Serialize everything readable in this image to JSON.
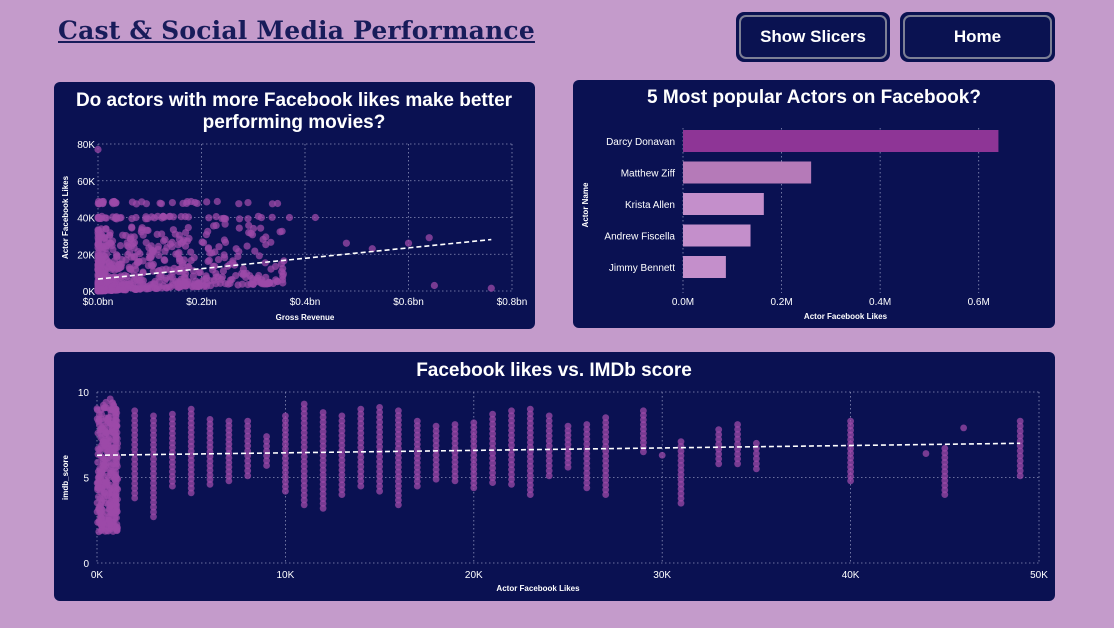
{
  "header": {
    "title": "Cast & Social Media Performance"
  },
  "nav": {
    "show_slicers_label": "Show Slicers",
    "home_label": "Home"
  },
  "colors": {
    "background": "#c49bcb",
    "card": "#0a1152",
    "accent_dark": "#8e3596",
    "accent_mid": "#b57ab8",
    "accent_light": "#c48fcb",
    "dot": "#9c4aa8"
  },
  "scatter_card": {
    "title_line1": "Do actors with more Facebook likes make better",
    "title_line2": "performing movies?"
  },
  "bar_card": {
    "title": "5 Most popular Actors on Facebook?"
  },
  "imdb_card": {
    "title": "Facebook likes vs. IMDb score"
  },
  "chart_data": [
    {
      "type": "scatter",
      "xlabel": "Gross Revenue",
      "ylabel": "Actor Facebook Likes",
      "x_ticks": [
        "$0.0bn",
        "$0.2bn",
        "$0.4bn",
        "$0.6bn",
        "$0.8bn"
      ],
      "y_ticks": [
        "0K",
        "20K",
        "40K",
        "60K",
        "80K"
      ],
      "xlim": [
        0,
        0.8
      ],
      "ylim": [
        0,
        80000
      ],
      "grid": true,
      "trendline": {
        "x": [
          0,
          0.76
        ],
        "y": [
          6500,
          28000
        ]
      },
      "outliers": [
        {
          "x": 0.0,
          "y": 77000
        },
        {
          "x": 0.76,
          "y": 1500
        },
        {
          "x": 0.65,
          "y": 3000
        },
        {
          "x": 0.64,
          "y": 29000
        },
        {
          "x": 0.6,
          "y": 26000
        },
        {
          "x": 0.53,
          "y": 23000
        },
        {
          "x": 0.48,
          "y": 26000
        },
        {
          "x": 0.42,
          "y": 40000
        },
        {
          "x": 0.37,
          "y": 40000
        }
      ]
    },
    {
      "type": "bar",
      "orientation": "horizontal",
      "categories": [
        "Darcy Donavan",
        "Matthew Ziff",
        "Krista Allen",
        "Andrew Fiscella",
        "Jimmy Bennett"
      ],
      "values": [
        640000,
        260000,
        164000,
        137000,
        87000
      ],
      "xlabel": "Actor Facebook Likes",
      "ylabel": "Actor Name",
      "x_ticks": [
        "0.0M",
        "0.2M",
        "0.4M",
        "0.6M"
      ],
      "xlim": [
        0,
        700000
      ],
      "grid": true
    },
    {
      "type": "scatter",
      "xlabel": "Actor Facebook Likes",
      "ylabel": "imdb_score",
      "x_ticks": [
        "0K",
        "10K",
        "20K",
        "30K",
        "40K",
        "50K"
      ],
      "y_ticks": [
        "0",
        "5",
        "10"
      ],
      "xlim": [
        0,
        50000
      ],
      "ylim": [
        0,
        10
      ],
      "grid": true,
      "trendline": {
        "x": [
          0,
          49000
        ],
        "y": [
          6.3,
          7.0
        ]
      },
      "columns": [
        {
          "x": 1000,
          "min": 3.4,
          "max": 8.9
        },
        {
          "x": 2000,
          "min": 3.8,
          "max": 8.9
        },
        {
          "x": 3000,
          "min": 2.7,
          "max": 8.6
        },
        {
          "x": 4000,
          "min": 4.5,
          "max": 8.7
        },
        {
          "x": 5000,
          "min": 4.1,
          "max": 9.0
        },
        {
          "x": 6000,
          "min": 4.6,
          "max": 8.4
        },
        {
          "x": 7000,
          "min": 4.8,
          "max": 8.3
        },
        {
          "x": 8000,
          "min": 5.1,
          "max": 8.3
        },
        {
          "x": 9000,
          "min": 5.7,
          "max": 7.4
        },
        {
          "x": 10000,
          "min": 4.2,
          "max": 8.6
        },
        {
          "x": 11000,
          "min": 3.4,
          "max": 9.3
        },
        {
          "x": 12000,
          "min": 3.2,
          "max": 8.8
        },
        {
          "x": 13000,
          "min": 4.0,
          "max": 8.6
        },
        {
          "x": 14000,
          "min": 4.5,
          "max": 9.0
        },
        {
          "x": 15000,
          "min": 4.2,
          "max": 9.1
        },
        {
          "x": 16000,
          "min": 3.4,
          "max": 8.9
        },
        {
          "x": 17000,
          "min": 4.5,
          "max": 8.3
        },
        {
          "x": 18000,
          "min": 4.9,
          "max": 8.0
        },
        {
          "x": 19000,
          "min": 4.8,
          "max": 8.1
        },
        {
          "x": 20000,
          "min": 4.4,
          "max": 8.2
        },
        {
          "x": 21000,
          "min": 4.7,
          "max": 8.7
        },
        {
          "x": 22000,
          "min": 4.6,
          "max": 8.9
        },
        {
          "x": 23000,
          "min": 4.0,
          "max": 9.0
        },
        {
          "x": 24000,
          "min": 5.1,
          "max": 8.6
        },
        {
          "x": 25000,
          "min": 5.6,
          "max": 8.0
        },
        {
          "x": 26000,
          "min": 4.4,
          "max": 8.1
        },
        {
          "x": 27000,
          "min": 4.0,
          "max": 8.5
        },
        {
          "x": 29000,
          "min": 6.5,
          "max": 8.9
        },
        {
          "x": 31000,
          "min": 3.5,
          "max": 7.1
        },
        {
          "x": 33000,
          "min": 5.8,
          "max": 7.8
        },
        {
          "x": 34000,
          "min": 5.8,
          "max": 8.1
        },
        {
          "x": 35000,
          "min": 5.5,
          "max": 7.0
        },
        {
          "x": 40000,
          "min": 4.8,
          "max": 8.3
        },
        {
          "x": 45000,
          "min": 4.0,
          "max": 6.7
        },
        {
          "x": 49000,
          "min": 5.1,
          "max": 8.3
        }
      ],
      "outliers": [
        {
          "x": 30000,
          "y": 6.3
        },
        {
          "x": 44000,
          "y": 6.4
        },
        {
          "x": 46000,
          "y": 7.9
        },
        {
          "x": 700,
          "y": 9.6
        }
      ]
    }
  ]
}
